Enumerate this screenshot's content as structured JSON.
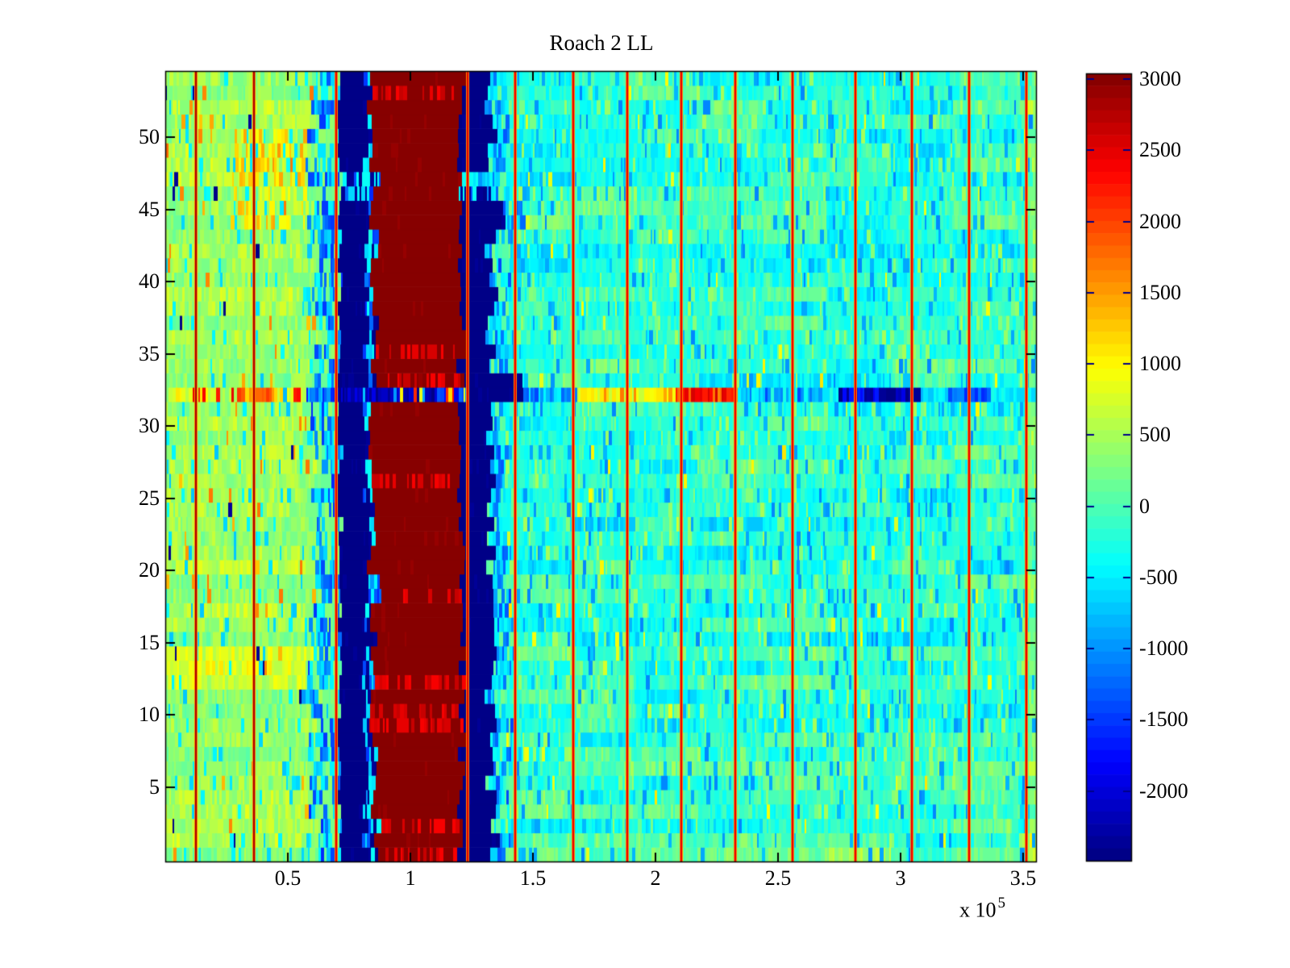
{
  "chart_data": {
    "type": "heatmap",
    "title": "Roach 2 LL",
    "colormap": "jet",
    "color_axis": {
      "min": -2490,
      "max": 3040,
      "levels": 64
    },
    "x_axis": {
      "range_1e5": [
        0,
        3.553
      ],
      "ticks": [
        0.5,
        1,
        1.5,
        2,
        2.5,
        3,
        3.5
      ],
      "tick_labels": [
        "0.5",
        "1",
        "1.5",
        "2",
        "2.5",
        "3",
        "3.5"
      ],
      "exponent_prefix": "x 10",
      "exponent": "5"
    },
    "y_axis": {
      "range": [
        -0.1,
        54.6
      ],
      "ticks": [
        5,
        10,
        15,
        20,
        25,
        30,
        35,
        40,
        45,
        50
      ],
      "tick_labels": [
        "5",
        "10",
        "15",
        "20",
        "25",
        "30",
        "35",
        "40",
        "45",
        "50"
      ]
    },
    "colorbar": {
      "value_top": 3040,
      "value_bottom": -2490,
      "ticks": [
        3000,
        2500,
        2000,
        1500,
        1000,
        500,
        0,
        -500,
        -1000,
        -1500,
        -2000
      ],
      "tick_labels": [
        "3000",
        "2500",
        "2000",
        "1500",
        "1000",
        "500",
        "0",
        "-500",
        "-1000",
        "-1500",
        "-2000"
      ]
    },
    "rows": 55,
    "features": {
      "regions": {
        "left": {
          "x1": 0.575,
          "base": 430,
          "row_var": 170,
          "spread": 270,
          "speckles": [
            {
              "p": 0.07,
              "v": -520,
              "s": 180
            },
            {
              "p": 0.02,
              "v": 1500,
              "s": 260
            },
            {
              "p": 0.006,
              "v": -2400,
              "s": 60
            }
          ]
        },
        "transition": {
          "choices": [
            {
              "p": 0.4,
              "v": 260,
              "s": 200
            },
            {
              "p": 0.32,
              "v": -560,
              "s": 200
            },
            {
              "p": 0.28,
              "v": -1250,
              "s": 320
            }
          ]
        },
        "navy1": {
          "v": -2460,
          "s": 60
        },
        "maroon_gap": {
          "choices": [
            {
              "p": 0.35,
              "v": -2400,
              "s": 80
            },
            {
              "p": 0.4,
              "v": -520,
              "s": 200
            },
            {
              "p": 0.25,
              "v": -1300,
              "s": 300
            }
          ]
        },
        "maroon": {
          "v": 3040,
          "s": 90
        },
        "navy2": {
          "v": -2460,
          "s": 60
        },
        "tail": {
          "choices": [
            {
              "p": 0.35,
              "v": -1150,
              "s": 250
            },
            {
              "p": 0.45,
              "v": -520,
              "s": 200
            },
            {
              "p": 0.2,
              "v": 120,
              "s": 150
            }
          ]
        },
        "right": {
          "base": -240,
          "row_var": 110,
          "spread": 240,
          "speckles": [
            {
              "p": 0.1,
              "v": 330,
              "s": 180
            },
            {
              "p": 0.08,
              "v": -880,
              "s": 200
            },
            {
              "p": 0.012,
              "v": 900,
              "s": 200
            }
          ],
          "block_boosts": [
            0,
            0,
            0,
            0,
            0,
            320,
            -260,
            180
          ],
          "bottom_rows_boost": 330,
          "right_edge_yellow_x0": 3.52
        }
      },
      "warm_patch": {
        "rows": [
          44,
          50
        ],
        "x": [
          0.27,
          0.58
        ],
        "p": 0.7,
        "boost": 520,
        "s": 420
      },
      "yellow_rows": {
        "rows": [
          12,
          14
        ],
        "boost": 330
      },
      "maroon_speckle_rows": [
        0,
        2,
        9,
        10,
        12,
        18,
        26,
        33,
        35,
        53
      ],
      "maroon_speckle": {
        "p": 0.45,
        "v": 2520,
        "s": 170
      },
      "navy_speckle_rows": [
        46,
        47
      ],
      "navy2_extended_rows": [
        32,
        33
      ],
      "red_lines": {
        "xs_1e5": [
          0.125,
          0.362,
          0.697,
          1.233,
          1.428,
          1.664,
          1.885,
          2.105,
          2.326,
          2.559,
          2.816,
          3.046,
          3.28,
          3.513
        ],
        "strong_dark_xs": [
          0.125,
          0.362
        ],
        "v": 2500,
        "v_dark": 2820,
        "edge_v": 1650
      },
      "row32_segments": [
        {
          "x0": 0.0,
          "x1": 0.3,
          "base": 680,
          "s": 380,
          "speckles": [
            {
              "p": 0.1,
              "v": 2250,
              "s": 250
            },
            {
              "p": 0.12,
              "v": -900,
              "s": 350
            }
          ]
        },
        {
          "x0": 0.3,
          "x1": 0.44,
          "base": 1500,
          "s": 520,
          "speckles": [
            {
              "p": 0.15,
              "v": 2420,
              "s": 200
            }
          ]
        },
        {
          "x0": 0.44,
          "x1": 0.575,
          "base": 950,
          "s": 420,
          "speckles": [
            {
              "p": 0.12,
              "v": 2150,
              "s": 250
            },
            {
              "p": 0.08,
              "v": -700,
              "s": 250
            }
          ]
        },
        {
          "x0": 0.575,
          "x1": 0.7,
          "base": -1250,
          "s": 600
        },
        {
          "x0": 0.7,
          "x1": 1.1,
          "base": -2250,
          "s": 350,
          "speckles": [
            {
              "p": 0.15,
              "v": -750,
              "s": 250
            },
            {
              "p": 0.05,
              "v": 750,
              "s": 300
            },
            {
              "p": 0.04,
              "v": 2150,
              "s": 250
            }
          ]
        },
        {
          "x0": 1.1,
          "x1": 1.235,
          "base": -1600,
          "s": 700,
          "speckles": [
            {
              "p": 0.3,
              "v": 900,
              "s": 400
            },
            {
              "p": 0.12,
              "v": 2200,
              "s": 250
            }
          ]
        },
        {
          "x0": 1.235,
          "x1": 1.46,
          "base": -2460,
          "s": 80
        },
        {
          "x0": 1.46,
          "x1": 1.68,
          "base": -800,
          "s": 450,
          "speckles": [
            {
              "p": 0.15,
              "v": -1500,
              "s": 300
            }
          ]
        },
        {
          "x0": 1.68,
          "x1": 1.95,
          "base": 850,
          "s": 300,
          "speckles": [
            {
              "p": 0.12,
              "v": 1600,
              "s": 250
            }
          ]
        },
        {
          "x0": 1.95,
          "x1": 2.08,
          "base": 1200,
          "s": 350
        },
        {
          "x0": 2.08,
          "x1": 2.34,
          "base": 2350,
          "s": 250,
          "speckles": [
            {
              "p": 0.12,
              "v": 1700,
              "s": 200
            }
          ]
        },
        {
          "x0": 2.34,
          "x1": 2.75,
          "base": -600,
          "s": 400,
          "speckles": [
            {
              "p": 0.18,
              "v": -1350,
              "s": 300
            }
          ]
        },
        {
          "x0": 2.75,
          "x1": 3.08,
          "base": -1850,
          "s": 500,
          "speckles": [
            {
              "p": 0.25,
              "v": -2400,
              "s": 100
            }
          ]
        },
        {
          "x0": 3.08,
          "x1": 3.2,
          "base": -550,
          "s": 280
        },
        {
          "x0": 3.2,
          "x1": 3.37,
          "base": -1300,
          "s": 380
        },
        {
          "x0": 3.37,
          "x1": 3.56,
          "base": -480,
          "s": 260
        }
      ],
      "row33": {
        "maroon_speckle_p": 0.5,
        "tail_x1": 1.5
      }
    }
  }
}
